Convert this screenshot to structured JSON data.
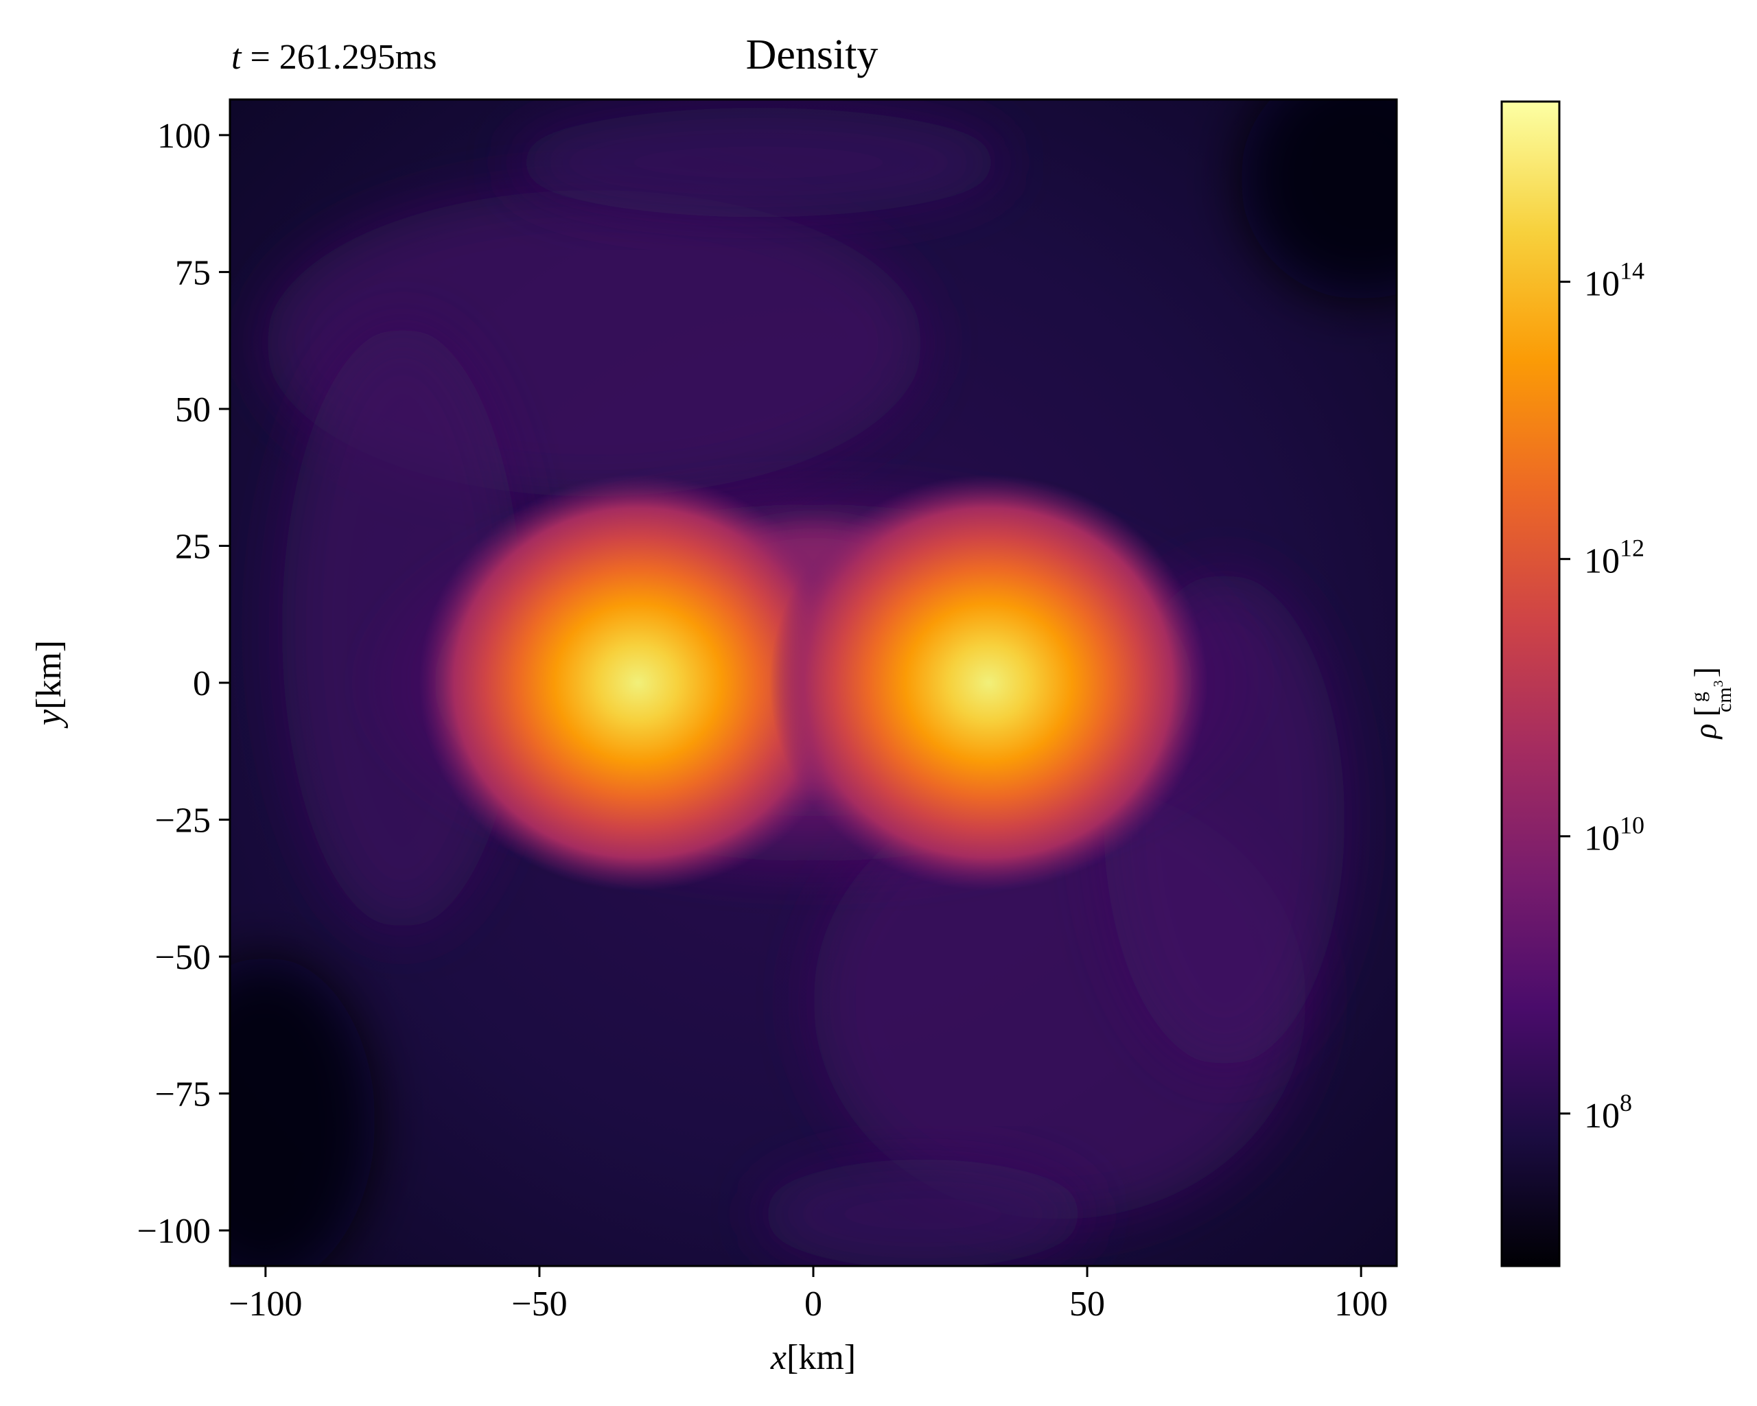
{
  "chart_data": {
    "type": "heatmap",
    "title": "Density",
    "annotations": [
      {
        "text": "t = 261.295ms",
        "symbol": "t",
        "value": "261.295ms",
        "position": "top-left"
      }
    ],
    "xlabel": {
      "symbol": "x",
      "unit": "[km]"
    },
    "ylabel": {
      "symbol": "y",
      "unit": "[km]"
    },
    "xlim": [
      -106.5,
      106.5
    ],
    "ylim": [
      -106.5,
      106.5
    ],
    "xticks": [
      -100,
      -50,
      0,
      50,
      100
    ],
    "xtick_labels": [
      "−100",
      "−50",
      "0",
      "50",
      "100"
    ],
    "yticks": [
      100,
      75,
      50,
      25,
      0,
      -25,
      -50,
      -75,
      -100
    ],
    "ytick_labels": [
      "100",
      "75",
      "50",
      "25",
      "0",
      "−25",
      "−50",
      "−75",
      "−100"
    ],
    "grid": false,
    "colormap": "inferno",
    "colorbar": {
      "scale": "log",
      "label": {
        "symbol": "ρ",
        "numerator": "g",
        "denominator": "cm",
        "power": "3"
      },
      "log_range": [
        6.9,
        15.3
      ],
      "ticks": [
        {
          "base": "10",
          "exp": "14",
          "log": 14
        },
        {
          "base": "10",
          "exp": "12",
          "log": 12
        },
        {
          "base": "10",
          "exp": "10",
          "log": 10
        },
        {
          "base": "10",
          "exp": "8",
          "log": 8
        }
      ],
      "stops": [
        "#000004",
        "#1b0c41",
        "#4a0c6b",
        "#781c6d",
        "#a52c60",
        "#cf4446",
        "#ed6925",
        "#fb9b06",
        "#f7d13d",
        "#fcffa4"
      ]
    },
    "features": [
      {
        "name": "left-core",
        "x": -32,
        "y": 0,
        "peak_log_density": 14.8
      },
      {
        "name": "right-core",
        "x": 32,
        "y": 0,
        "peak_log_density": 14.8
      }
    ]
  }
}
